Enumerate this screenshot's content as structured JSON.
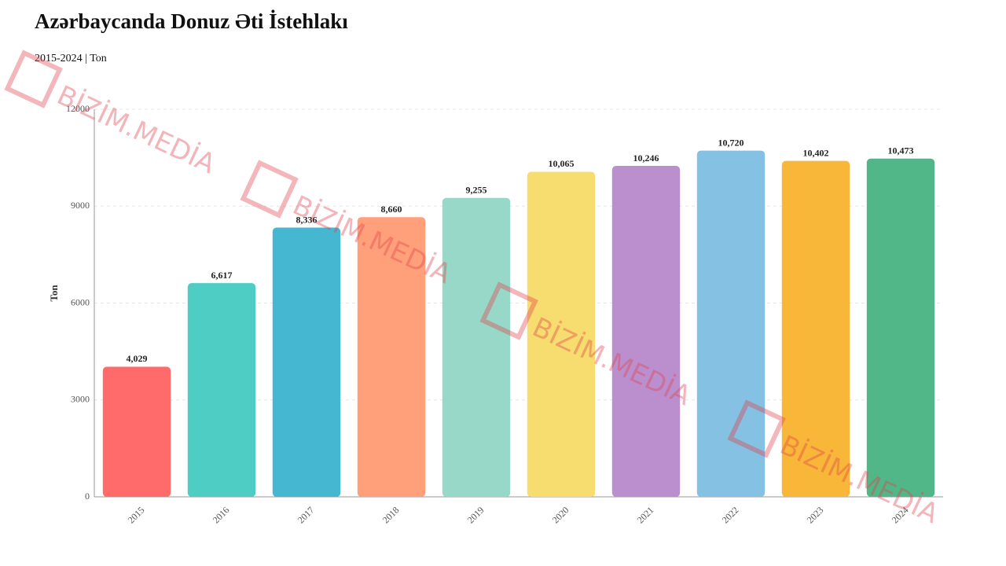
{
  "chart_data": {
    "type": "bar",
    "title": "Azərbaycanda Donuz Əti İstehlakı",
    "subtitle": "2015-2024 | Ton",
    "y_label": "Ton",
    "watermark": "BİZİM.MEDİA",
    "categories": [
      "2015",
      "2016",
      "2017",
      "2018",
      "2019",
      "2020",
      "2021",
      "2022",
      "2023",
      "2024"
    ],
    "values": [
      4029,
      6617,
      8336,
      8660,
      9255,
      10065,
      10246,
      10720,
      10402,
      10473
    ],
    "value_labels": [
      "4,029",
      "6,617",
      "8,336",
      "8,660",
      "9,255",
      "10,065",
      "10,246",
      "10,720",
      "10,402",
      "10,473"
    ],
    "colors": [
      "#ff6b6b",
      "#4ecdc4",
      "#45b7d1",
      "#ffa07a",
      "#98d8c8",
      "#f7dc6f",
      "#bb8fce",
      "#85c1e2",
      "#f8b739",
      "#52b788"
    ],
    "ylim": [
      0,
      12000
    ],
    "yticks": [
      0,
      3000,
      6000,
      9000,
      12000
    ],
    "grid": true
  }
}
